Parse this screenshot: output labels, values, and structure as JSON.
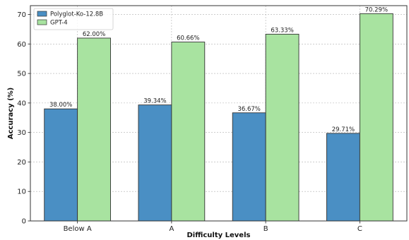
{
  "chart_data": {
    "type": "bar",
    "title": "",
    "xlabel": "Difficulty Levels",
    "ylabel": "Accuracy (%)",
    "categories": [
      "Below A",
      "A",
      "B",
      "C"
    ],
    "ylim": [
      0,
      73
    ],
    "yticks": [
      0,
      10,
      20,
      30,
      40,
      50,
      60,
      70
    ],
    "grid": true,
    "legend_position": "top-left",
    "series": [
      {
        "name": "Polyglot-Ko-12.8B",
        "color": "#4a8fc4",
        "values": [
          38.0,
          39.34,
          36.67,
          29.71
        ],
        "labels": [
          "38.00%",
          "39.34%",
          "36.67%",
          "29.71%"
        ]
      },
      {
        "name": "GPT-4",
        "color": "#a8e3a0",
        "values": [
          62.0,
          60.66,
          63.33,
          70.29
        ],
        "labels": [
          "62.00%",
          "60.66%",
          "63.33%",
          "70.29%"
        ]
      }
    ]
  }
}
